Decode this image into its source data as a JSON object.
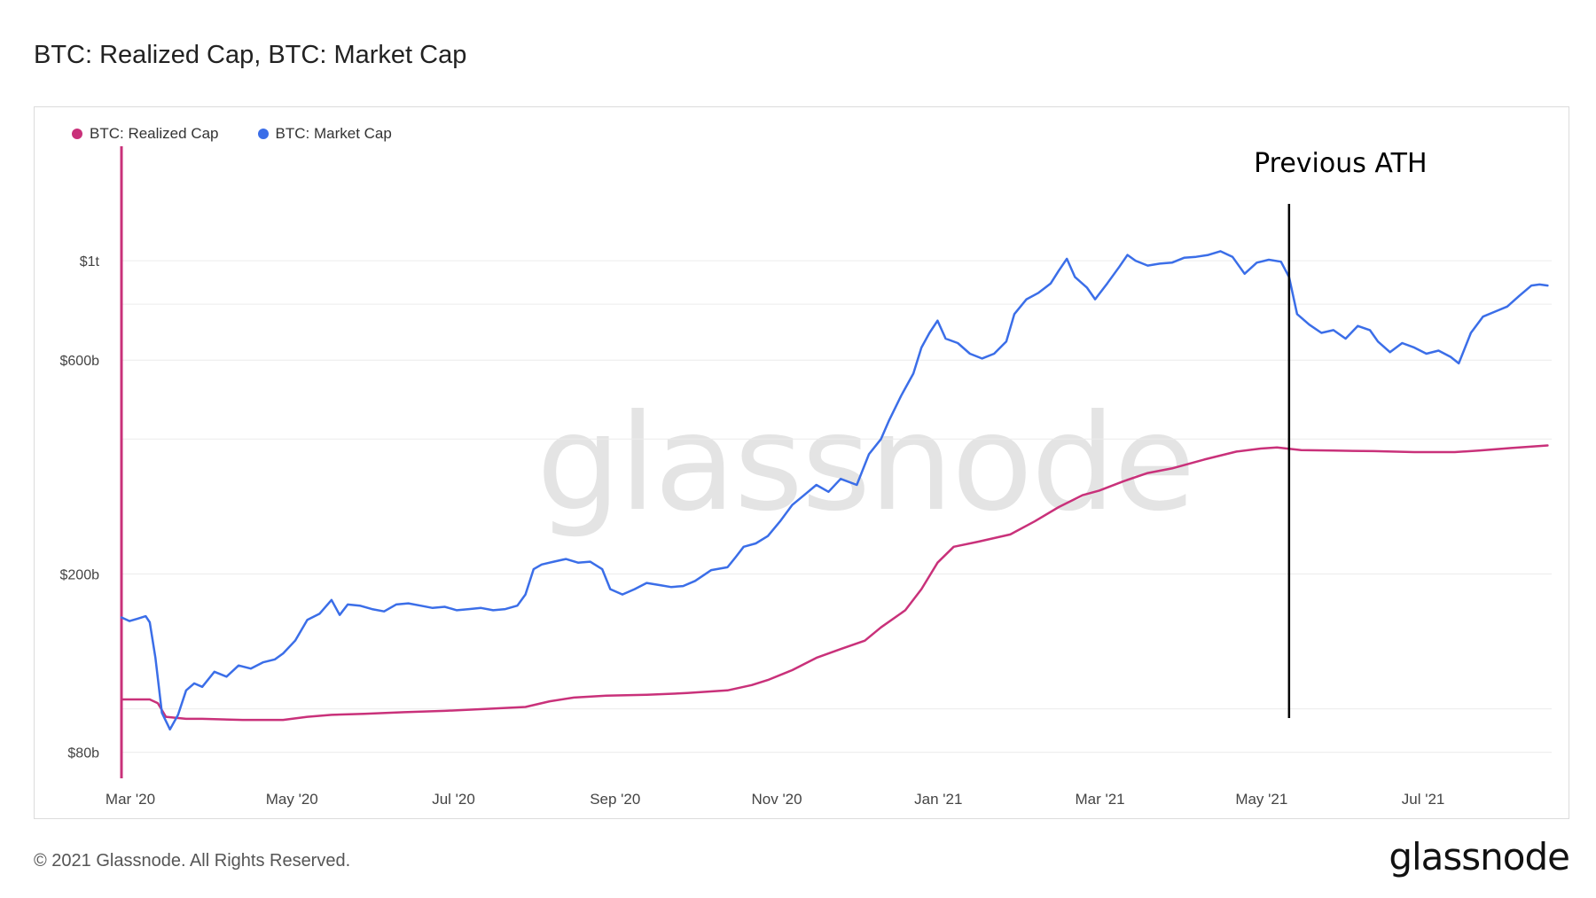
{
  "page": {
    "title": "BTC: Realized Cap, BTC: Market Cap",
    "footer": "© 2021 Glassnode. All Rights Reserved.",
    "brand": "glassnode",
    "watermark": "glassnode"
  },
  "colors": {
    "realized": "#c9317a",
    "market": "#3b6ee8",
    "annotation": "#000000",
    "grid": "#ececec",
    "axis_text": "#444444"
  },
  "chart_data": {
    "type": "line",
    "title": "BTC: Realized Cap, BTC: Market Cap",
    "yscale": "log",
    "ylim": [
      70,
      1800
    ],
    "xlim": [
      0,
      17.7
    ],
    "x_unit": "months since Mar 1 2020",
    "x_ticks": [
      {
        "x": 0,
        "label": "Mar '20"
      },
      {
        "x": 2,
        "label": "May '20"
      },
      {
        "x": 4,
        "label": "Jul '20"
      },
      {
        "x": 6,
        "label": "Sep '20"
      },
      {
        "x": 8,
        "label": "Nov '20"
      },
      {
        "x": 10,
        "label": "Jan '21"
      },
      {
        "x": 12,
        "label": "Mar '21"
      },
      {
        "x": 14,
        "label": "May '21"
      },
      {
        "x": 16,
        "label": "Jul '21"
      }
    ],
    "y_ticks": [
      {
        "value": 80,
        "label": "$80b"
      },
      {
        "value": 200,
        "label": "$200b"
      },
      {
        "value": 600,
        "label": "$600b"
      },
      {
        "value": 1000,
        "label": "$1t"
      }
    ],
    "y_grid": [
      80,
      100,
      200,
      400,
      600,
      800,
      1000
    ],
    "legend": [
      {
        "name": "BTC: Realized Cap",
        "color": "#c9317a"
      },
      {
        "name": "BTC: Market Cap",
        "color": "#3b6ee8"
      }
    ],
    "series": [
      {
        "name": "BTC: Realized Cap",
        "color": "#c9317a",
        "points": [
          [
            0,
            105
          ],
          [
            0.35,
            105
          ],
          [
            0.45,
            103
          ],
          [
            0.55,
            96
          ],
          [
            0.8,
            95
          ],
          [
            1.0,
            95
          ],
          [
            1.5,
            94.5
          ],
          [
            2.0,
            94.5
          ],
          [
            2.3,
            96
          ],
          [
            2.6,
            97
          ],
          [
            3.0,
            97.5
          ],
          [
            3.5,
            98.3
          ],
          [
            4.0,
            99
          ],
          [
            4.5,
            100
          ],
          [
            5.0,
            101
          ],
          [
            5.3,
            104
          ],
          [
            5.6,
            106
          ],
          [
            6.0,
            107
          ],
          [
            6.5,
            107.5
          ],
          [
            7.0,
            108.5
          ],
          [
            7.5,
            110
          ],
          [
            7.8,
            113
          ],
          [
            8.0,
            116
          ],
          [
            8.3,
            122
          ],
          [
            8.6,
            130
          ],
          [
            8.9,
            136
          ],
          [
            9.2,
            142
          ],
          [
            9.4,
            152
          ],
          [
            9.7,
            166
          ],
          [
            9.9,
            185
          ],
          [
            10.1,
            212
          ],
          [
            10.3,
            230
          ],
          [
            10.6,
            236
          ],
          [
            11.0,
            245
          ],
          [
            11.3,
            262
          ],
          [
            11.6,
            282
          ],
          [
            11.9,
            300
          ],
          [
            12.1,
            307
          ],
          [
            12.4,
            322
          ],
          [
            12.7,
            336
          ],
          [
            13.0,
            344
          ],
          [
            13.4,
            360
          ],
          [
            13.8,
            375
          ],
          [
            14.1,
            381
          ],
          [
            14.3,
            383
          ],
          [
            14.6,
            378
          ],
          [
            15.0,
            377
          ],
          [
            15.5,
            376
          ],
          [
            16.0,
            374
          ],
          [
            16.5,
            374
          ],
          [
            16.8,
            377
          ],
          [
            17.2,
            382
          ],
          [
            17.65,
            387
          ]
        ]
      },
      {
        "name": "BTC: Market Cap",
        "color": "#3b6ee8",
        "points": [
          [
            0,
            160
          ],
          [
            0.1,
            157
          ],
          [
            0.2,
            159
          ],
          [
            0.3,
            161
          ],
          [
            0.35,
            156
          ],
          [
            0.42,
            130
          ],
          [
            0.5,
            98
          ],
          [
            0.6,
            90
          ],
          [
            0.7,
            97
          ],
          [
            0.8,
            110
          ],
          [
            0.9,
            114
          ],
          [
            1.0,
            112
          ],
          [
            1.15,
            121
          ],
          [
            1.3,
            118
          ],
          [
            1.45,
            125
          ],
          [
            1.6,
            123
          ],
          [
            1.75,
            127
          ],
          [
            1.9,
            129
          ],
          [
            2.0,
            133
          ],
          [
            2.15,
            142
          ],
          [
            2.3,
            158
          ],
          [
            2.45,
            163
          ],
          [
            2.6,
            175
          ],
          [
            2.7,
            162
          ],
          [
            2.8,
            171
          ],
          [
            2.95,
            170
          ],
          [
            3.1,
            167
          ],
          [
            3.25,
            165
          ],
          [
            3.4,
            171
          ],
          [
            3.55,
            172
          ],
          [
            3.7,
            170
          ],
          [
            3.85,
            168
          ],
          [
            4.0,
            169
          ],
          [
            4.15,
            166
          ],
          [
            4.3,
            167
          ],
          [
            4.45,
            168
          ],
          [
            4.6,
            166
          ],
          [
            4.75,
            167
          ],
          [
            4.9,
            170
          ],
          [
            5.0,
            180
          ],
          [
            5.1,
            205
          ],
          [
            5.2,
            210
          ],
          [
            5.35,
            213
          ],
          [
            5.5,
            216
          ],
          [
            5.65,
            212
          ],
          [
            5.8,
            213
          ],
          [
            5.95,
            205
          ],
          [
            6.05,
            185
          ],
          [
            6.2,
            180
          ],
          [
            6.35,
            185
          ],
          [
            6.5,
            191
          ],
          [
            6.65,
            189
          ],
          [
            6.8,
            187
          ],
          [
            6.95,
            188
          ],
          [
            7.1,
            193
          ],
          [
            7.3,
            204
          ],
          [
            7.5,
            207
          ],
          [
            7.6,
            218
          ],
          [
            7.7,
            230
          ],
          [
            7.85,
            234
          ],
          [
            8.0,
            243
          ],
          [
            8.15,
            262
          ],
          [
            8.3,
            285
          ],
          [
            8.45,
            300
          ],
          [
            8.6,
            316
          ],
          [
            8.75,
            305
          ],
          [
            8.9,
            326
          ],
          [
            9.1,
            316
          ],
          [
            9.25,
            370
          ],
          [
            9.4,
            400
          ],
          [
            9.5,
            440
          ],
          [
            9.65,
            500
          ],
          [
            9.8,
            560
          ],
          [
            9.9,
            640
          ],
          [
            10.0,
            690
          ],
          [
            10.1,
            735
          ],
          [
            10.2,
            670
          ],
          [
            10.35,
            655
          ],
          [
            10.5,
            620
          ],
          [
            10.65,
            605
          ],
          [
            10.8,
            620
          ],
          [
            10.95,
            660
          ],
          [
            11.05,
            760
          ],
          [
            11.2,
            820
          ],
          [
            11.35,
            848
          ],
          [
            11.5,
            890
          ],
          [
            11.6,
            950
          ],
          [
            11.7,
            1010
          ],
          [
            11.8,
            920
          ],
          [
            11.95,
            870
          ],
          [
            12.05,
            820
          ],
          [
            12.2,
            890
          ],
          [
            12.35,
            970
          ],
          [
            12.45,
            1030
          ],
          [
            12.55,
            1000
          ],
          [
            12.7,
            975
          ],
          [
            12.85,
            985
          ],
          [
            13.0,
            990
          ],
          [
            13.15,
            1015
          ],
          [
            13.3,
            1020
          ],
          [
            13.45,
            1030
          ],
          [
            13.6,
            1050
          ],
          [
            13.75,
            1020
          ],
          [
            13.9,
            935
          ],
          [
            14.05,
            990
          ],
          [
            14.2,
            1005
          ],
          [
            14.35,
            995
          ],
          [
            14.45,
            920
          ],
          [
            14.55,
            760
          ],
          [
            14.7,
            720
          ],
          [
            14.85,
            690
          ],
          [
            15.0,
            700
          ],
          [
            15.15,
            670
          ],
          [
            15.3,
            715
          ],
          [
            15.45,
            700
          ],
          [
            15.55,
            660
          ],
          [
            15.7,
            625
          ],
          [
            15.85,
            655
          ],
          [
            16.0,
            640
          ],
          [
            16.15,
            620
          ],
          [
            16.3,
            630
          ],
          [
            16.45,
            610
          ],
          [
            16.55,
            590
          ],
          [
            16.7,
            690
          ],
          [
            16.85,
            750
          ],
          [
            17.0,
            770
          ],
          [
            17.15,
            790
          ],
          [
            17.3,
            835
          ],
          [
            17.45,
            880
          ],
          [
            17.55,
            885
          ],
          [
            17.65,
            880
          ]
        ]
      }
    ],
    "annotations": [
      {
        "type": "vline",
        "x": 14.45,
        "label": "Previous ATH"
      }
    ]
  }
}
